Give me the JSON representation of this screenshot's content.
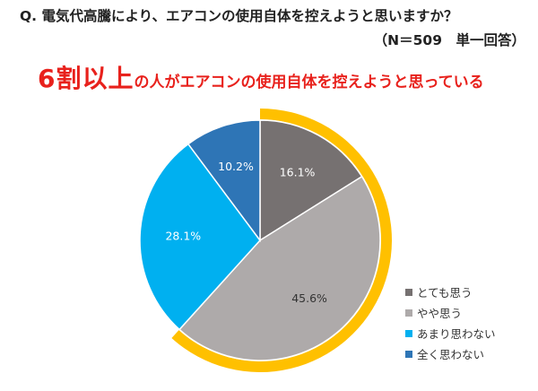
{
  "question": {
    "line1": "Q.  電気代高騰により、エアコンの使用自体を控えようと思いますか？",
    "line2": "（N＝509　単一回答）"
  },
  "headline": {
    "emphasis": "6割以上",
    "rest": "の人がエアコンの使用自体を控えようと思っている"
  },
  "chart_data": {
    "type": "pie",
    "start_angle_deg": 0,
    "direction": "clockwise",
    "slices": [
      {
        "label": "とても思う",
        "value": 16.1,
        "display": "16.1%",
        "color": "#767171",
        "label_color": "#ffffff"
      },
      {
        "label": "やや思う",
        "value": 45.6,
        "display": "45.6%",
        "color": "#aeaaaa",
        "label_color": "#333333"
      },
      {
        "label": "あまり思わない",
        "value": 28.1,
        "display": "28.1%",
        "color": "#00b0f0",
        "label_color": "#ffffff"
      },
      {
        "label": "全く思わない",
        "value": 10.2,
        "display": "10.2%",
        "color": "#2e75b6",
        "label_color": "#ffffff"
      }
    ],
    "highlight_arc": {
      "covers": [
        "とても思う",
        "やや思う"
      ],
      "color": "#ffc000"
    },
    "legend_position": "bottom-right"
  }
}
